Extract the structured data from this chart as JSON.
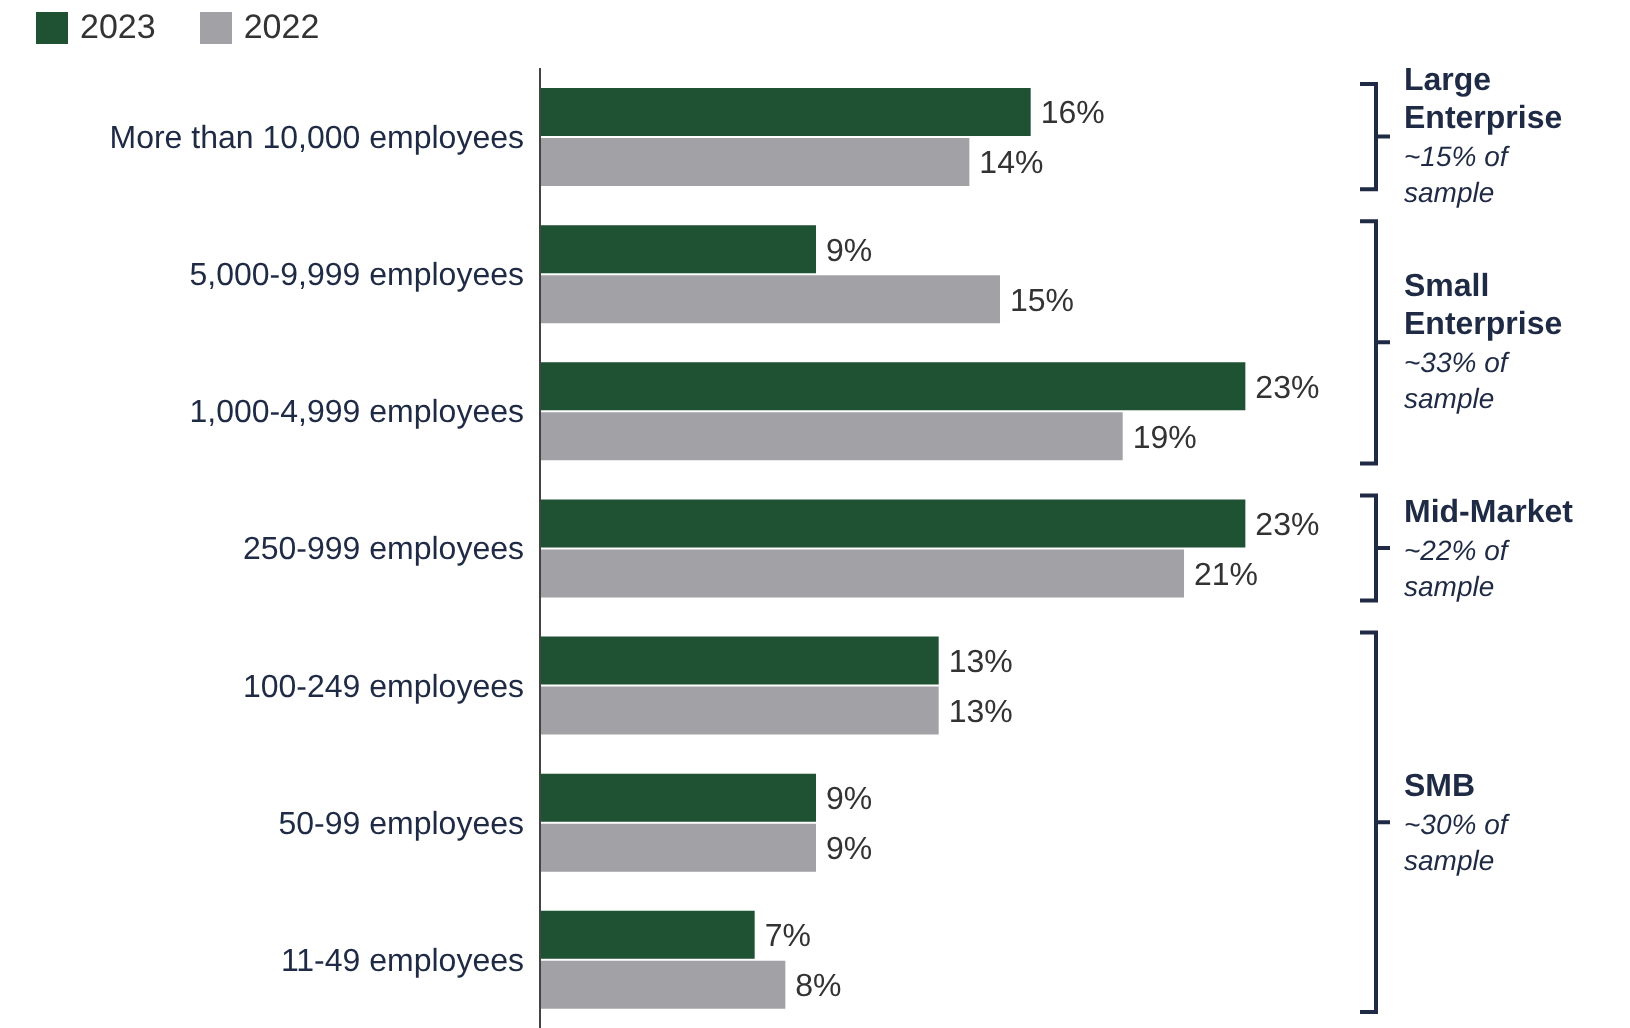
{
  "chart_data": {
    "type": "bar",
    "orientation": "horizontal",
    "legend": "top left",
    "tick_labels": "y",
    "categories": [
      "More than 10,000 employees",
      "5,000-9,999 employees",
      "1,000-4,999 employees",
      "250-999 employees",
      "100-249 employees",
      "50-99 employees",
      "11-49 employees"
    ],
    "series": [
      {
        "name": "2023",
        "color": "#1f5133",
        "values": [
          16,
          9,
          23,
          23,
          13,
          9,
          7
        ],
        "value_labels": [
          "16%",
          "9%",
          "23%",
          "23%",
          "13%",
          "9%",
          "7%"
        ]
      },
      {
        "name": "2022",
        "color": "#a2a1a6",
        "values": [
          14,
          15,
          19,
          21,
          13,
          9,
          8
        ],
        "value_labels": [
          "14%",
          "15%",
          "19%",
          "21%",
          "13%",
          "9%",
          "8%"
        ]
      }
    ],
    "annotations": [
      "Large Enterprise",
      "~15% of sample",
      "Small Enterprise",
      "~33% of sample",
      "Mid-Market",
      "~22% of sample",
      "SMB",
      "~30% of sample"
    ]
  }
}
